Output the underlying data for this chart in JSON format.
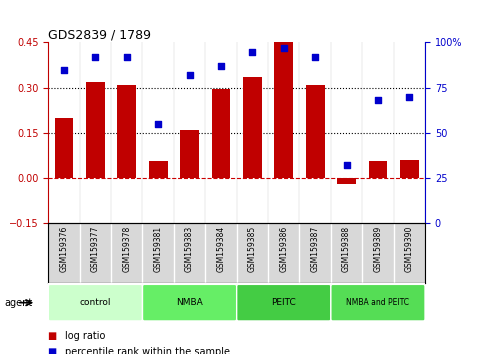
{
  "title": "GDS2839 / 1789",
  "samples": [
    "GSM159376",
    "GSM159377",
    "GSM159378",
    "GSM159381",
    "GSM159383",
    "GSM159384",
    "GSM159385",
    "GSM159386",
    "GSM159387",
    "GSM159388",
    "GSM159389",
    "GSM159390"
  ],
  "log_ratio": [
    0.2,
    0.32,
    0.31,
    0.055,
    0.16,
    0.295,
    0.335,
    0.45,
    0.31,
    -0.02,
    0.055,
    0.06
  ],
  "percentile_rank": [
    85,
    92,
    92,
    55,
    82,
    87,
    95,
    97,
    92,
    32,
    68,
    70
  ],
  "bar_color": "#c00000",
  "dot_color": "#0000cc",
  "ylim_left": [
    -0.15,
    0.45
  ],
  "ylim_right": [
    0,
    100
  ],
  "yticks_left": [
    -0.15,
    0.0,
    0.15,
    0.3,
    0.45
  ],
  "yticks_right": [
    0,
    25,
    50,
    75,
    100
  ],
  "hlines": [
    0.15,
    0.3
  ],
  "hline_zero_color": "#cc0000",
  "hline_dotted_color": "#000000",
  "groups": [
    {
      "label": "control",
      "start": 0,
      "end": 3,
      "color": "#ccffcc"
    },
    {
      "label": "NMBA",
      "start": 3,
      "end": 6,
      "color": "#66ee66"
    },
    {
      "label": "PEITC",
      "start": 6,
      "end": 9,
      "color": "#44cc44"
    },
    {
      "label": "NMBA and PEITC",
      "start": 9,
      "end": 12,
      "color": "#55dd55"
    }
  ],
  "agent_label": "agent",
  "legend_log_ratio": "log ratio",
  "legend_percentile": "percentile rank within the sample",
  "sample_bg": "#d8d8d8",
  "plot_bg": "#ffffff"
}
